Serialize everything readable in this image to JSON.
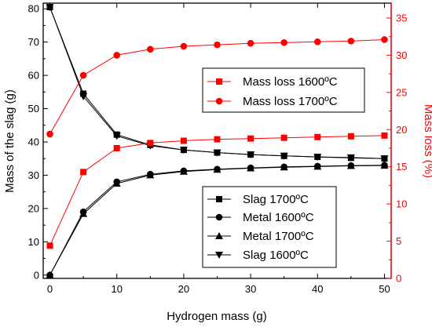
{
  "chart_data": {
    "type": "line",
    "xlabel": "Hydrogen mass (g)",
    "ylabel": "Mass of the slag (g)",
    "y2label": "Mass loss (%)",
    "xlim": [
      -1,
      51
    ],
    "ylim": [
      -1,
      81.7
    ],
    "y2lim": [
      0,
      37
    ],
    "xticks": [
      "0",
      "10",
      "20",
      "30",
      "40",
      "50"
    ],
    "yticks": [
      "0",
      "10",
      "20",
      "30",
      "40",
      "50",
      "60",
      "70",
      "80"
    ],
    "y2ticks": [
      "0",
      "5",
      "10",
      "15",
      "20",
      "25",
      "30",
      "35"
    ],
    "grid": false,
    "colors": {
      "left_axis": "#000000",
      "right_axis": "#ff0000"
    },
    "legends": [
      {
        "position": "upper-middle",
        "entries": [
          "Mass loss 1600ºC",
          "Mass loss 1700ºC"
        ]
      },
      {
        "position": "lower-right",
        "entries": [
          "Slag 1700ºC",
          "Metal 1600ºC",
          "Metal 1700ºC",
          "Slag 1600ºC"
        ]
      }
    ],
    "x": [
      0,
      5,
      10,
      15,
      20,
      25,
      30,
      35,
      40,
      45,
      50
    ],
    "series": [
      {
        "name": "Slag 1700ºC",
        "axis": "left",
        "marker": "square",
        "color": "#000000",
        "values": [
          80.5,
          54.5,
          42.2,
          39.1,
          37.6,
          36.8,
          36.2,
          35.8,
          35.5,
          35.2,
          35.0
        ]
      },
      {
        "name": "Metal 1600ºC",
        "axis": "left",
        "marker": "circle",
        "color": "#000000",
        "values": [
          0,
          19.0,
          28.0,
          30.3,
          31.3,
          31.8,
          32.2,
          32.5,
          32.7,
          32.9,
          33.0
        ]
      },
      {
        "name": "Metal 1700ºC",
        "axis": "left",
        "marker": "triangle-up",
        "color": "#000000",
        "values": [
          0,
          18.4,
          27.5,
          30.0,
          31.1,
          31.7,
          32.1,
          32.4,
          32.6,
          32.8,
          32.9
        ]
      },
      {
        "name": "Slag 1600ºC",
        "axis": "left",
        "marker": "triangle-down",
        "color": "#000000",
        "values": [
          80.5,
          53.7,
          41.8,
          38.9,
          37.6,
          36.8,
          36.2,
          35.8,
          35.5,
          35.3,
          35.0
        ]
      },
      {
        "name": "Mass loss 1600ºC",
        "axis": "right",
        "marker": "square",
        "color": "#ff0000",
        "values": [
          4.4,
          14.3,
          17.5,
          18.2,
          18.5,
          18.7,
          18.8,
          18.9,
          19.0,
          19.1,
          19.2
        ]
      },
      {
        "name": "Mass loss 1700ºC",
        "axis": "right",
        "marker": "circle",
        "color": "#ff0000",
        "values": [
          19.4,
          27.3,
          30.0,
          30.8,
          31.2,
          31.4,
          31.6,
          31.7,
          31.8,
          31.9,
          32.1
        ]
      }
    ]
  }
}
